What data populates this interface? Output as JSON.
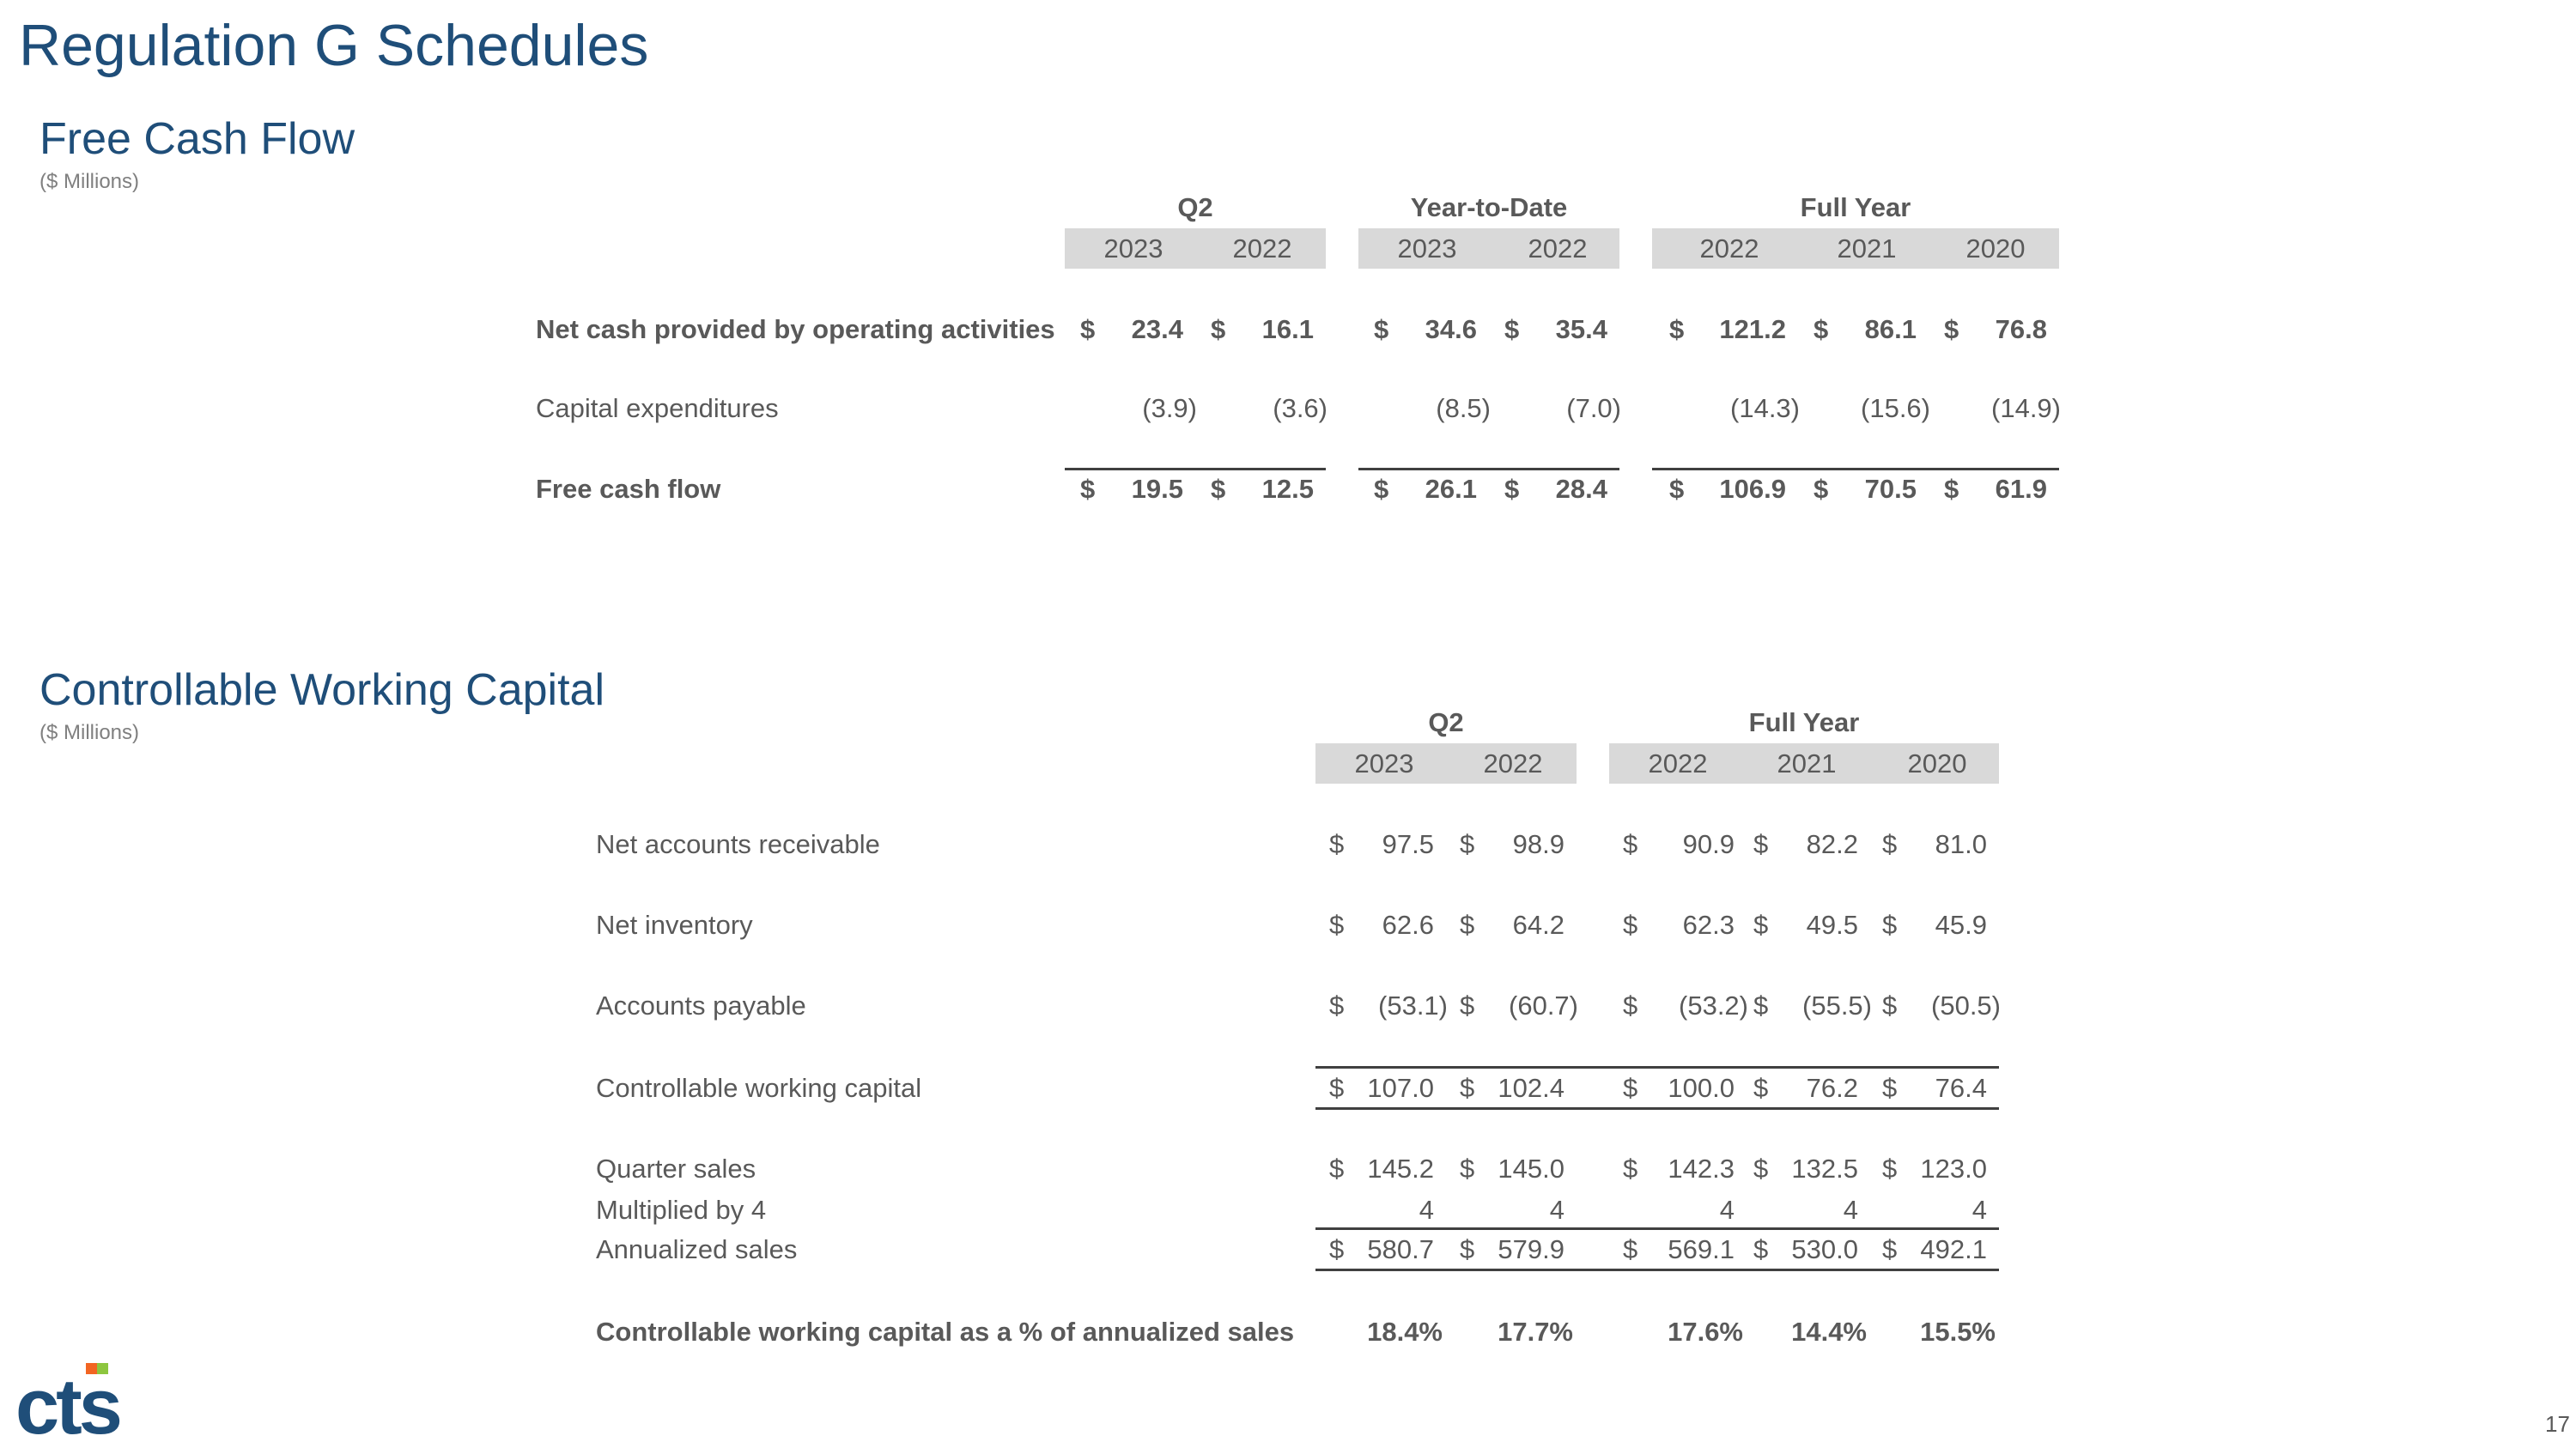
{
  "page_title": "Regulation G Schedules",
  "page_number": "17",
  "currency_symbol": "$",
  "fcf": {
    "title": "Free Cash Flow",
    "subtitle": "($ Millions)",
    "groups": [
      {
        "label": "Q2",
        "years": [
          "2023",
          "2022"
        ]
      },
      {
        "label": "Year-to-Date",
        "years": [
          "2023",
          "2022"
        ]
      },
      {
        "label": "Full Year",
        "years": [
          "2022",
          "2021",
          "2020"
        ]
      }
    ],
    "rows": [
      {
        "label": "Net cash provided by operating activities",
        "bold": true,
        "dollar": true,
        "values": [
          "23.4",
          "16.1",
          "34.6",
          "35.4",
          "121.2",
          "86.1",
          "76.8"
        ]
      },
      {
        "label": "Capital expenditures",
        "bold": false,
        "dollar": false,
        "values": [
          "(3.9)",
          "(3.6)",
          "(8.5)",
          "(7.0)",
          "(14.3)",
          "(15.6)",
          "(14.9)"
        ]
      },
      {
        "label": "Free cash flow",
        "bold": true,
        "dollar": true,
        "values": [
          "19.5",
          "12.5",
          "26.1",
          "28.4",
          "106.9",
          "70.5",
          "61.9"
        ]
      }
    ]
  },
  "cwc": {
    "title": "Controllable Working Capital",
    "subtitle": "($ Millions)",
    "groups": [
      {
        "label": "Q2",
        "years": [
          "2023",
          "2022"
        ]
      },
      {
        "label": "Full Year",
        "years": [
          "2022",
          "2021",
          "2020"
        ]
      }
    ],
    "rows": [
      {
        "label": "Net accounts receivable",
        "bold": false,
        "dollar": true,
        "values": [
          "97.5",
          "98.9",
          "90.9",
          "82.2",
          "81.0"
        ]
      },
      {
        "label": "Net inventory",
        "bold": false,
        "dollar": true,
        "values": [
          "62.6",
          "64.2",
          "62.3",
          "49.5",
          "45.9"
        ]
      },
      {
        "label": "Accounts payable",
        "bold": false,
        "dollar": true,
        "values": [
          "(53.1)",
          "(60.7)",
          "(53.2)",
          "(55.5)",
          "(50.5)"
        ]
      },
      {
        "label": "Controllable working capital",
        "bold": false,
        "dollar": true,
        "values": [
          "107.0",
          "102.4",
          "100.0",
          "76.2",
          "76.4"
        ]
      },
      {
        "label": "Quarter sales",
        "bold": false,
        "dollar": true,
        "values": [
          "145.2",
          "145.0",
          "142.3",
          "132.5",
          "123.0"
        ]
      },
      {
        "label": "Multiplied by 4",
        "bold": false,
        "dollar": false,
        "values": [
          "4",
          "4",
          "4",
          "4",
          "4"
        ]
      },
      {
        "label": "Annualized sales",
        "bold": false,
        "dollar": true,
        "values": [
          "580.7",
          "579.9",
          "569.1",
          "530.0",
          "492.1"
        ]
      },
      {
        "label": "Controllable working capital as a % of annualized sales",
        "bold": true,
        "dollar": false,
        "values": [
          "18.4%",
          "17.7%",
          "17.6%",
          "14.4%",
          "15.5%"
        ]
      }
    ]
  },
  "logo": {
    "text": "CTS",
    "mark_colors": [
      "#f26522",
      "#8dc63f"
    ]
  }
}
